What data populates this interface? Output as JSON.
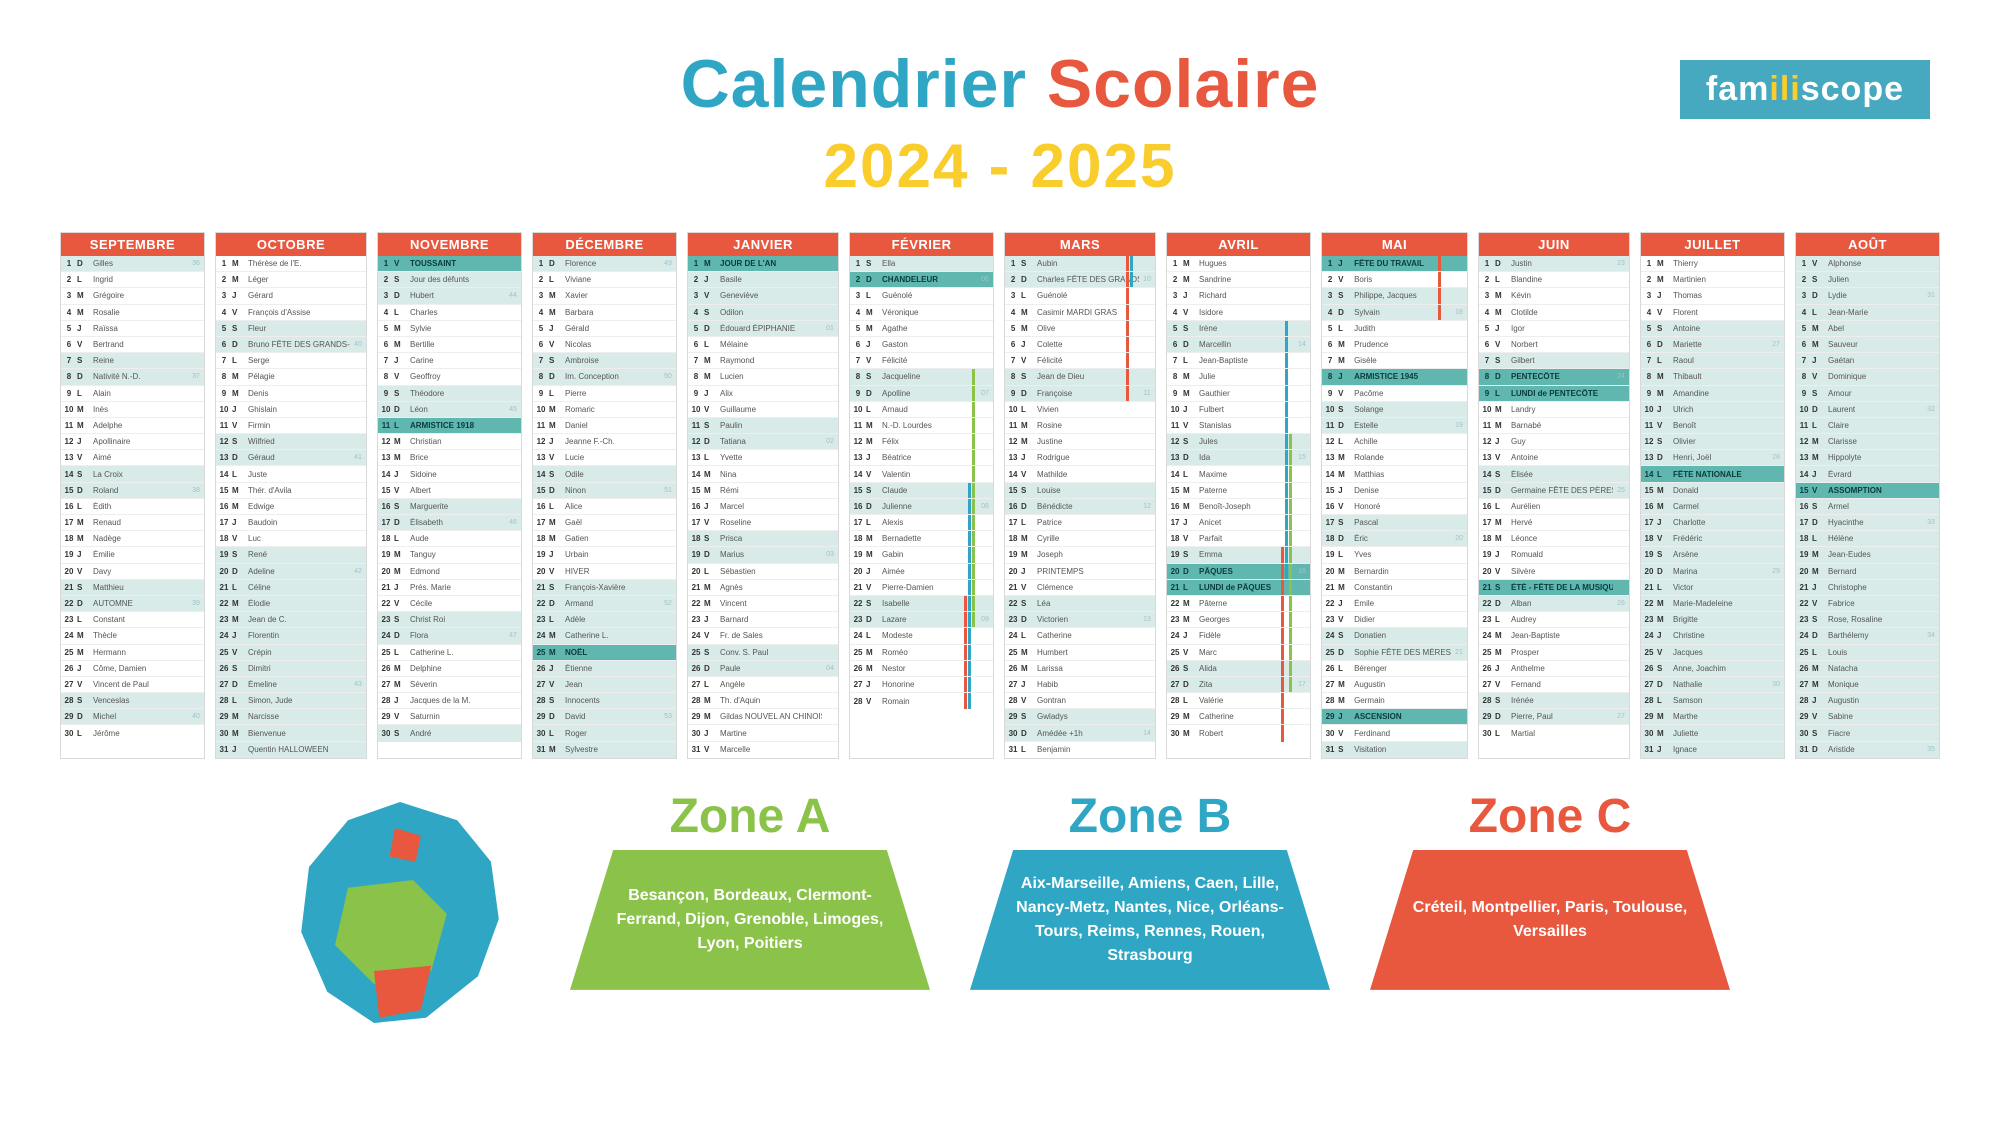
{
  "title": {
    "word1": "Calendrier",
    "word2": "Scolaire",
    "year": "2024 - 2025"
  },
  "logo": {
    "pre": "fam",
    "mid": "ili",
    "post": "scope"
  },
  "colors": {
    "red": "#e8583f",
    "blue": "#2fa6c4",
    "green": "#8bc34a",
    "yellow": "#f8cd2c",
    "teal": "#5fb7b0",
    "shade": "#d8ebe9"
  },
  "zones": {
    "a": {
      "title": "Zone A",
      "cities": "Besançon, Bordeaux, Clermont-Ferrand, Dijon, Grenoble, Limoges, Lyon, Poitiers"
    },
    "b": {
      "title": "Zone B",
      "cities": "Aix-Marseille, Amiens, Caen, Lille, Nancy-Metz, Nantes, Nice, Orléans-Tours, Reims, Rennes, Rouen, Strasbourg"
    },
    "c": {
      "title": "Zone C",
      "cities": "Créteil, Montpellier, Paris, Toulouse, Versailles"
    }
  },
  "months": [
    {
      "name": "SEPTEMBRE",
      "startDow": 6,
      "ndays": 30,
      "firstWeek": 36,
      "saints": [
        "Gilles",
        "Ingrid",
        "Grégoire",
        "Rosalie",
        "Raïssa",
        "Bertrand",
        "Reine",
        "Nativité N.-D.",
        "Alain",
        "Inès",
        "Adelphe",
        "Apollinaire",
        "Aimé",
        "La Croix",
        "Roland",
        "Édith",
        "Renaud",
        "Nadège",
        "Émilie",
        "Davy",
        "Matthieu",
        "AUTOMNE",
        "Constant",
        "Thècle",
        "Hermann",
        "Côme, Damien",
        "Vincent de Paul",
        "Venceslas",
        "Michel",
        "Jérôme"
      ],
      "shade": [
        1,
        7,
        8,
        14,
        15,
        21,
        22,
        28,
        29
      ],
      "holiday": []
    },
    {
      "name": "OCTOBRE",
      "startDow": 1,
      "ndays": 31,
      "firstWeek": 40,
      "saints": [
        "Thérèse de l'E.",
        "Léger",
        "Gérard",
        "François d'Assise",
        "Fleur",
        "Bruno  FÊTE DES GRANDS-PÈRES",
        "Serge",
        "Pélagie",
        "Denis",
        "Ghislain",
        "Firmin",
        "Wilfried",
        "Géraud",
        "Juste",
        "Thér. d'Avila",
        "Edwige",
        "Baudoin",
        "Luc",
        "René",
        "Adeline",
        "Céline",
        "Élodie",
        "Jean de C.",
        "Florentin",
        "Crépin",
        "Dimitri",
        "Émeline",
        "Simon, Jude",
        "Narcisse",
        "Bienvenue",
        "Quentin HALLOWEEN"
      ],
      "shade": [
        5,
        6,
        12,
        13,
        19,
        20,
        21,
        22,
        23,
        24,
        25,
        26,
        27,
        28,
        29,
        30,
        31
      ],
      "holiday": []
    },
    {
      "name": "NOVEMBRE",
      "startDow": 4,
      "ndays": 30,
      "firstWeek": 44,
      "saints": [
        "TOUSSAINT",
        "Jour des défunts",
        "Hubert",
        "Charles",
        "Sylvie",
        "Bertille",
        "Carine",
        "Geoffroy",
        "Théodore",
        "Léon",
        "ARMISTICE 1918",
        "Christian",
        "Brice",
        "Sidoine",
        "Albert",
        "Marguerite",
        "Élisabeth",
        "Aude",
        "Tanguy",
        "Edmond",
        "Prés. Marie",
        "Cécile",
        "Christ Roi",
        "Flora",
        "Catherine L.",
        "Delphine",
        "Séverin",
        "Jacques de la M.",
        "Saturnin",
        "André"
      ],
      "shade": [
        2,
        3,
        9,
        10,
        16,
        17,
        23,
        24,
        30
      ],
      "holiday": [
        1,
        11
      ]
    },
    {
      "name": "DÉCEMBRE",
      "startDow": 6,
      "ndays": 31,
      "firstWeek": 49,
      "saints": [
        "Florence",
        "Viviane",
        "Xavier",
        "Barbara",
        "Gérald",
        "Nicolas",
        "Ambroise",
        "Im. Conception",
        "Pierre",
        "Romaric",
        "Daniel",
        "Jeanne F.-Ch.",
        "Lucie",
        "Odile",
        "Ninon",
        "Alice",
        "Gaël",
        "Gatien",
        "Urbain",
        "HIVER",
        "François-Xavière",
        "Armand",
        "Adèle",
        "Catherine L.",
        "NOËL",
        "Étienne",
        "Jean",
        "Innocents",
        "David",
        "Roger",
        "Sylvestre"
      ],
      "shade": [
        1,
        7,
        8,
        14,
        15,
        21,
        22,
        23,
        24,
        26,
        27,
        28,
        29,
        30,
        31
      ],
      "holiday": [
        25
      ]
    },
    {
      "name": "JANVIER",
      "startDow": 2,
      "ndays": 31,
      "firstWeek": 1,
      "saints": [
        "JOUR DE L'AN",
        "Basile",
        "Geneviève",
        "Odilon",
        "Édouard  ÉPIPHANIE",
        "Mélaine",
        "Raymond",
        "Lucien",
        "Alix",
        "Guillaume",
        "Paulin",
        "Tatiana",
        "Yvette",
        "Nina",
        "Rémi",
        "Marcel",
        "Roseline",
        "Prisca",
        "Marius",
        "Sébastien",
        "Agnès",
        "Vincent",
        "Barnard",
        "Fr. de Sales",
        "Conv. S. Paul",
        "Paule",
        "Angèle",
        "Th. d'Aquin",
        "Gildas  NOUVEL AN CHINOIS",
        "Martine",
        "Marcelle"
      ],
      "shade": [
        2,
        3,
        4,
        5,
        11,
        12,
        18,
        19,
        25,
        26
      ],
      "holiday": [
        1
      ]
    },
    {
      "name": "FÉVRIER",
      "startDow": 5,
      "ndays": 28,
      "firstWeek": 6,
      "saints": [
        "Ella",
        "CHANDELEUR",
        "Guénolé",
        "Véronique",
        "Agathe",
        "Gaston",
        "Félicité",
        "Jacqueline",
        "Apolline",
        "Arnaud",
        "N.-D. Lourdes",
        "Félix",
        "Béatrice",
        "Valentin",
        "Claude",
        "Julienne",
        "Alexis",
        "Bernadette",
        "Gabin",
        "Aimée",
        "Pierre-Damien",
        "Isabelle",
        "Lazare",
        "Modeste",
        "Roméo",
        "Nestor",
        "Honorine",
        "Romain"
      ],
      "shade": [
        1,
        8,
        9,
        15,
        16,
        22,
        23
      ],
      "holiday": [
        2
      ],
      "vacA": [
        8,
        9,
        10,
        11,
        12,
        13,
        14,
        15,
        16,
        17,
        18,
        19,
        20,
        21,
        22,
        23
      ],
      "vacB": [
        15,
        16,
        17,
        18,
        19,
        20,
        21,
        22,
        23,
        24,
        25,
        26,
        27,
        28
      ],
      "vacC": [
        22,
        23,
        24,
        25,
        26,
        27,
        28
      ]
    },
    {
      "name": "MARS",
      "startDow": 5,
      "ndays": 31,
      "firstWeek": 10,
      "saints": [
        "Aubin",
        "Charles  FÊTE DES GRANDS-MÈRES",
        "Guénolé",
        "Casimir  MARDI GRAS",
        "Olive",
        "Colette",
        "Félicité",
        "Jean de Dieu",
        "Françoise",
        "Vivien",
        "Rosine",
        "Justine",
        "Rodrigue",
        "Mathilde",
        "Louise",
        "Bénédicte",
        "Patrice",
        "Cyrille",
        "Joseph",
        "PRINTEMPS",
        "Clémence",
        "Léa",
        "Victorien",
        "Catherine",
        "Humbert",
        "Larissa",
        "Habib",
        "Gontran",
        "Gwladys",
        "Amédée +1h",
        "Benjamin"
      ],
      "shade": [
        1,
        2,
        8,
        9,
        15,
        16,
        22,
        23,
        29,
        30
      ],
      "holiday": [],
      "vacB": [
        1,
        2
      ],
      "vacC": [
        1,
        2,
        3,
        4,
        5,
        6,
        7,
        8,
        9
      ]
    },
    {
      "name": "AVRIL",
      "startDow": 1,
      "ndays": 30,
      "firstWeek": 14,
      "saints": [
        "Hugues",
        "Sandrine",
        "Richard",
        "Isidore",
        "Irène",
        "Marcellin",
        "Jean-Baptiste",
        "Julie",
        "Gauthier",
        "Fulbert",
        "Stanislas",
        "Jules",
        "Ida",
        "Maxime",
        "Paterne",
        "Benoît-Joseph",
        "Anicet",
        "Parfait",
        "Emma",
        "PÂQUES",
        "LUNDI de PÂQUES",
        "Pâterne",
        "Georges",
        "Fidèle",
        "Marc",
        "Alida",
        "Zita",
        "Valérie",
        "Catherine",
        "Robert"
      ],
      "shade": [
        5,
        6,
        12,
        13,
        19,
        20,
        26,
        27
      ],
      "holiday": [
        20,
        21
      ],
      "vacA": [
        12,
        13,
        14,
        15,
        16,
        17,
        18,
        19,
        20,
        21,
        22,
        23,
        24,
        25,
        26,
        27
      ],
      "vacB": [
        5,
        6,
        7,
        8,
        9,
        10,
        11,
        12,
        13,
        14,
        15,
        16,
        17,
        18,
        19,
        20
      ],
      "vacC": [
        19,
        20,
        21,
        22,
        23,
        24,
        25,
        26,
        27,
        28,
        29,
        30
      ]
    },
    {
      "name": "MAI",
      "startDow": 3,
      "ndays": 31,
      "firstWeek": 18,
      "saints": [
        "FÊTE DU TRAVAIL",
        "Boris",
        "Philippe, Jacques",
        "Sylvain",
        "Judith",
        "Prudence",
        "Gisèle",
        "ARMISTICE 1945",
        "Pacôme",
        "Solange",
        "Estelle",
        "Achille",
        "Rolande",
        "Matthias",
        "Denise",
        "Honoré",
        "Pascal",
        "Éric",
        "Yves",
        "Bernardin",
        "Constantin",
        "Émile",
        "Didier",
        "Donatien",
        "Sophie  FÊTE DES MÈRES",
        "Bérenger",
        "Augustin",
        "Germain",
        "ASCENSION",
        "Ferdinand",
        "Visitation"
      ],
      "shade": [
        3,
        4,
        10,
        11,
        17,
        18,
        24,
        25,
        31
      ],
      "holiday": [
        1,
        8,
        29
      ],
      "vacC": [
        1,
        2,
        3,
        4
      ]
    },
    {
      "name": "JUIN",
      "startDow": 6,
      "ndays": 30,
      "firstWeek": 23,
      "saints": [
        "Justin",
        "Blandine",
        "Kévin",
        "Clotilde",
        "Igor",
        "Norbert",
        "Gilbert",
        "PENTECÔTE",
        "LUNDI de PENTECÔTE",
        "Landry",
        "Barnabé",
        "Guy",
        "Antoine",
        "Élisée",
        "Germaine  FÊTE DES PÈRES",
        "Aurélien",
        "Hervé",
        "Léonce",
        "Romuald",
        "Silvère",
        "ÉTÉ - FÊTE DE LA MUSIQUE",
        "Alban",
        "Audrey",
        "Jean-Baptiste",
        "Prosper",
        "Anthelme",
        "Fernand",
        "Irénée",
        "Pierre, Paul",
        "Martial"
      ],
      "shade": [
        1,
        7,
        14,
        15,
        22,
        28,
        29
      ],
      "holiday": [
        8,
        9,
        21
      ]
    },
    {
      "name": "JUILLET",
      "startDow": 1,
      "ndays": 31,
      "firstWeek": 27,
      "saints": [
        "Thierry",
        "Martinien",
        "Thomas",
        "Florent",
        "Antoine",
        "Mariette",
        "Raoul",
        "Thibault",
        "Amandine",
        "Ulrich",
        "Benoît",
        "Olivier",
        "Henri, Joël",
        "FÊTE NATIONALE",
        "Donald",
        "Carmel",
        "Charlotte",
        "Frédéric",
        "Arsène",
        "Marina",
        "Victor",
        "Marie-Madeleine",
        "Brigitte",
        "Christine",
        "Jacques",
        "Anne, Joachim",
        "Nathalie",
        "Samson",
        "Marthe",
        "Juliette",
        "Ignace"
      ],
      "shade": [
        5,
        6,
        7,
        8,
        9,
        10,
        11,
        12,
        13,
        15,
        16,
        17,
        18,
        19,
        20,
        21,
        22,
        23,
        24,
        25,
        26,
        27,
        28,
        29,
        30,
        31
      ],
      "holiday": [
        14
      ]
    },
    {
      "name": "AOÛT",
      "startDow": 4,
      "ndays": 31,
      "firstWeek": 31,
      "saints": [
        "Alphonse",
        "Julien",
        "Lydie",
        "Jean-Marie",
        "Abel",
        "Sauveur",
        "Gaétan",
        "Dominique",
        "Amour",
        "Laurent",
        "Claire",
        "Clarisse",
        "Hippolyte",
        "Évrard",
        "ASSOMPTION",
        "Armel",
        "Hyacinthe",
        "Hélène",
        "Jean-Eudes",
        "Bernard",
        "Christophe",
        "Fabrice",
        "Rose, Rosaline",
        "Barthélemy",
        "Louis",
        "Natacha",
        "Monique",
        "Augustin",
        "Sabine",
        "Fiacre",
        "Aristide"
      ],
      "shade": [
        1,
        2,
        3,
        4,
        5,
        6,
        7,
        8,
        9,
        10,
        11,
        12,
        13,
        14,
        16,
        17,
        18,
        19,
        20,
        21,
        22,
        23,
        24,
        25,
        26,
        27,
        28,
        29,
        30,
        31
      ],
      "holiday": [
        15
      ]
    }
  ],
  "dow": [
    "L",
    "M",
    "M",
    "J",
    "V",
    "S",
    "D"
  ]
}
